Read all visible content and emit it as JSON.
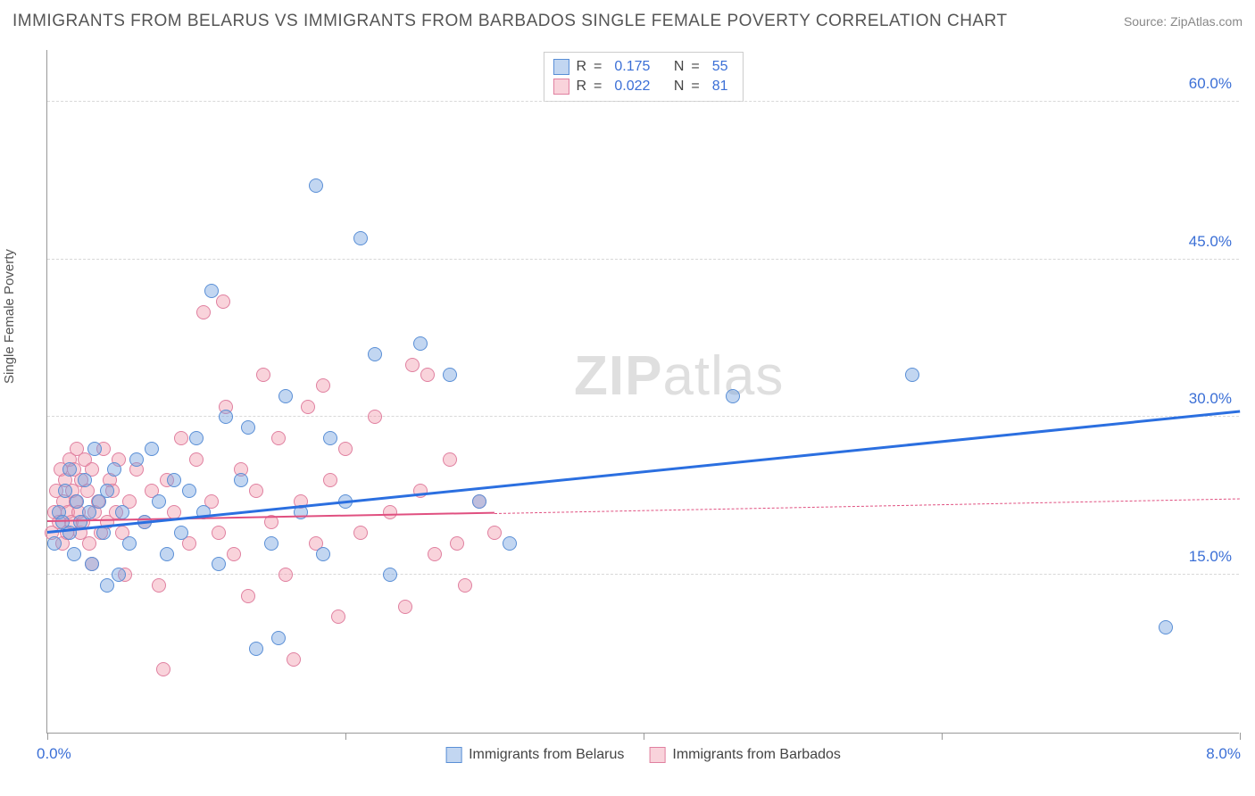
{
  "title": "IMMIGRANTS FROM BELARUS VS IMMIGRANTS FROM BARBADOS SINGLE FEMALE POVERTY CORRELATION CHART",
  "source": "Source: ZipAtlas.com",
  "ylabel": "Single Female Poverty",
  "watermark_bold": "ZIP",
  "watermark_rest": "atlas",
  "chart": {
    "type": "scatter",
    "background_color": "#ffffff",
    "grid_color": "#d8d8d8",
    "axis_color": "#999999",
    "xlim": [
      0,
      8
    ],
    "ylim": [
      0,
      65
    ],
    "x_ticks": [
      0,
      2,
      4,
      6,
      8
    ],
    "x_tick_labels": {
      "left": "0.0%",
      "right": "8.0%"
    },
    "y_gridlines": [
      15,
      30,
      45,
      60
    ],
    "y_tick_labels": [
      "15.0%",
      "30.0%",
      "45.0%",
      "60.0%"
    ],
    "point_radius": 8,
    "point_opacity": 0.55,
    "tick_label_color": "#3b6fd6",
    "axis_label_color": "#555555",
    "title_fontsize": 19,
    "tick_fontsize": 17,
    "label_fontsize": 15
  },
  "series": [
    {
      "name": "Immigrants from Belarus",
      "color_fill": "rgba(120,165,225,0.45)",
      "color_stroke": "#5a8fd6",
      "trend_color": "#2b6fe0",
      "trend_width": 2.5,
      "R": "0.175",
      "N": "55",
      "trend": {
        "x1": 0.0,
        "y1": 19.0,
        "x2": 8.0,
        "y2": 30.5
      },
      "points": [
        [
          0.05,
          18
        ],
        [
          0.08,
          21
        ],
        [
          0.1,
          20
        ],
        [
          0.12,
          23
        ],
        [
          0.15,
          19
        ],
        [
          0.15,
          25
        ],
        [
          0.18,
          17
        ],
        [
          0.2,
          22
        ],
        [
          0.22,
          20
        ],
        [
          0.25,
          24
        ],
        [
          0.28,
          21
        ],
        [
          0.3,
          16
        ],
        [
          0.32,
          27
        ],
        [
          0.35,
          22
        ],
        [
          0.38,
          19
        ],
        [
          0.4,
          23
        ],
        [
          0.45,
          25
        ],
        [
          0.48,
          15
        ],
        [
          0.5,
          21
        ],
        [
          0.55,
          18
        ],
        [
          0.6,
          26
        ],
        [
          0.65,
          20
        ],
        [
          0.7,
          27
        ],
        [
          0.75,
          22
        ],
        [
          0.8,
          17
        ],
        [
          0.85,
          24
        ],
        [
          0.9,
          19
        ],
        [
          0.95,
          23
        ],
        [
          1.0,
          28
        ],
        [
          1.05,
          21
        ],
        [
          1.1,
          42
        ],
        [
          1.15,
          16
        ],
        [
          1.2,
          30
        ],
        [
          1.3,
          24
        ],
        [
          1.35,
          29
        ],
        [
          1.4,
          8
        ],
        [
          1.5,
          18
        ],
        [
          1.55,
          9
        ],
        [
          1.6,
          32
        ],
        [
          1.7,
          21
        ],
        [
          1.8,
          52
        ],
        [
          1.85,
          17
        ],
        [
          1.9,
          28
        ],
        [
          2.0,
          22
        ],
        [
          2.1,
          47
        ],
        [
          2.2,
          36
        ],
        [
          2.3,
          15
        ],
        [
          2.5,
          37
        ],
        [
          2.7,
          34
        ],
        [
          2.9,
          22
        ],
        [
          3.1,
          18
        ],
        [
          4.6,
          32
        ],
        [
          5.8,
          34
        ],
        [
          7.5,
          10
        ],
        [
          0.4,
          14
        ]
      ]
    },
    {
      "name": "Immigrants from Barbados",
      "color_fill": "rgba(240,150,170,0.42)",
      "color_stroke": "#e080a0",
      "trend_color": "#e05080",
      "trend_width": 2,
      "R": "0.022",
      "N": "81",
      "trend_solid": {
        "x1": 0.0,
        "y1": 20.0,
        "x2": 3.0,
        "y2": 20.8
      },
      "trend_dashed": {
        "x1": 3.0,
        "y1": 20.8,
        "x2": 8.0,
        "y2": 22.2
      },
      "points": [
        [
          0.03,
          19
        ],
        [
          0.05,
          21
        ],
        [
          0.06,
          23
        ],
        [
          0.08,
          20
        ],
        [
          0.09,
          25
        ],
        [
          0.1,
          18
        ],
        [
          0.11,
          22
        ],
        [
          0.12,
          24
        ],
        [
          0.13,
          19
        ],
        [
          0.14,
          21
        ],
        [
          0.15,
          26
        ],
        [
          0.16,
          20
        ],
        [
          0.17,
          23
        ],
        [
          0.18,
          25
        ],
        [
          0.19,
          22
        ],
        [
          0.2,
          27
        ],
        [
          0.21,
          21
        ],
        [
          0.22,
          19
        ],
        [
          0.23,
          24
        ],
        [
          0.24,
          20
        ],
        [
          0.25,
          26
        ],
        [
          0.27,
          23
        ],
        [
          0.28,
          18
        ],
        [
          0.3,
          25
        ],
        [
          0.32,
          21
        ],
        [
          0.34,
          22
        ],
        [
          0.36,
          19
        ],
        [
          0.38,
          27
        ],
        [
          0.4,
          20
        ],
        [
          0.42,
          24
        ],
        [
          0.44,
          23
        ],
        [
          0.46,
          21
        ],
        [
          0.48,
          26
        ],
        [
          0.5,
          19
        ],
        [
          0.55,
          22
        ],
        [
          0.6,
          25
        ],
        [
          0.65,
          20
        ],
        [
          0.7,
          23
        ],
        [
          0.75,
          14
        ],
        [
          0.78,
          6
        ],
        [
          0.8,
          24
        ],
        [
          0.85,
          21
        ],
        [
          0.9,
          28
        ],
        [
          0.95,
          18
        ],
        [
          1.0,
          26
        ],
        [
          1.05,
          40
        ],
        [
          1.1,
          22
        ],
        [
          1.15,
          19
        ],
        [
          1.18,
          41
        ],
        [
          1.2,
          31
        ],
        [
          1.25,
          17
        ],
        [
          1.3,
          25
        ],
        [
          1.35,
          13
        ],
        [
          1.4,
          23
        ],
        [
          1.45,
          34
        ],
        [
          1.5,
          20
        ],
        [
          1.55,
          28
        ],
        [
          1.6,
          15
        ],
        [
          1.65,
          7
        ],
        [
          1.7,
          22
        ],
        [
          1.75,
          31
        ],
        [
          1.8,
          18
        ],
        [
          1.85,
          33
        ],
        [
          1.9,
          24
        ],
        [
          1.95,
          11
        ],
        [
          2.0,
          27
        ],
        [
          2.1,
          19
        ],
        [
          2.2,
          30
        ],
        [
          2.3,
          21
        ],
        [
          2.4,
          12
        ],
        [
          2.45,
          35
        ],
        [
          2.5,
          23
        ],
        [
          2.55,
          34
        ],
        [
          2.6,
          17
        ],
        [
          2.7,
          26
        ],
        [
          2.75,
          18
        ],
        [
          2.8,
          14
        ],
        [
          2.9,
          22
        ],
        [
          3.0,
          19
        ],
        [
          0.3,
          16
        ],
        [
          0.52,
          15
        ]
      ]
    }
  ],
  "legend_top": {
    "R_label": "R",
    "N_label": "N",
    "eq": "="
  }
}
